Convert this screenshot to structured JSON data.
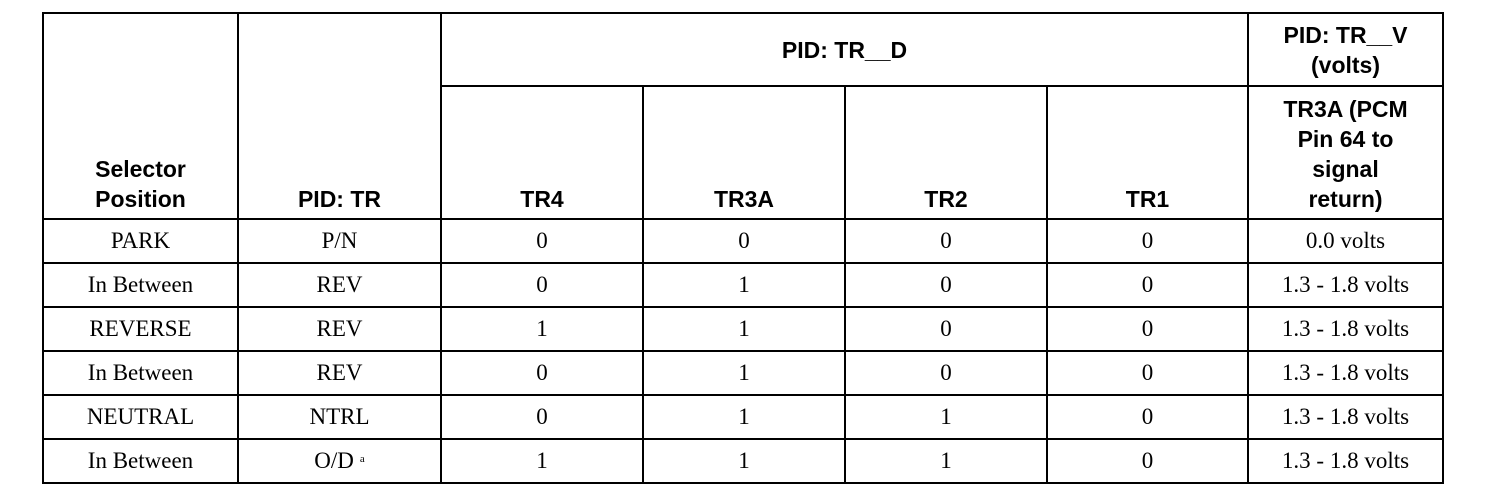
{
  "table": {
    "header": {
      "selector_position": "Selector Position",
      "pid_tr": "PID: TR",
      "pid_tr_d": "PID: TR__D",
      "pid_tr_v": "PID: TR__V (volts)",
      "sub": [
        "TR4",
        "TR3A",
        "TR2",
        "TR1",
        "TR3A (PCM Pin 64 to signal return)"
      ]
    },
    "rows": [
      [
        "PARK",
        "P/N",
        "0",
        "0",
        "0",
        "0",
        "0.0 volts"
      ],
      [
        "In Between",
        "REV",
        "0",
        "1",
        "0",
        "0",
        "1.3 - 1.8 volts"
      ],
      [
        "REVERSE",
        "REV",
        "1",
        "1",
        "0",
        "0",
        "1.3 - 1.8 volts"
      ],
      [
        "In Between",
        "REV",
        "0",
        "1",
        "0",
        "0",
        "1.3 - 1.8 volts"
      ],
      [
        "NEUTRAL",
        "NTRL",
        "0",
        "1",
        "1",
        "0",
        "1.3 - 1.8 volts"
      ],
      [
        "In Between",
        "O/D",
        "1",
        "1",
        "1",
        "0",
        "1.3 - 1.8 volts"
      ]
    ],
    "footnote_mark": "a"
  }
}
